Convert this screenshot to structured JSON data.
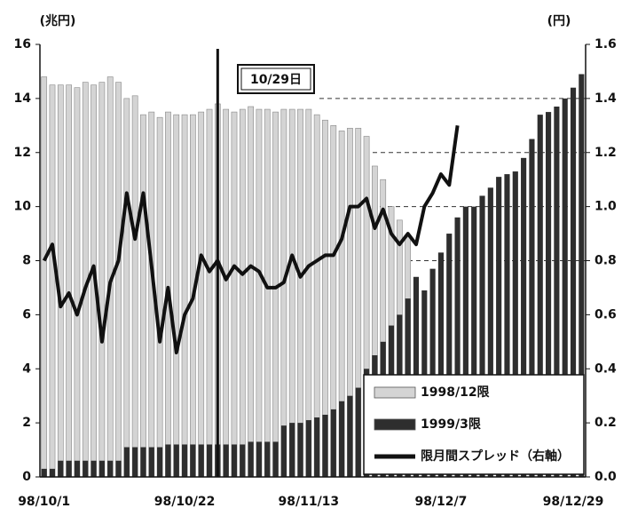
{
  "chart_data": {
    "type": "bar_line",
    "y_label": "(兆円)",
    "y2_label": "(円)",
    "annotation": "10/29日",
    "categories": [
      "98/10/1",
      null,
      null,
      null,
      null,
      null,
      null,
      null,
      null,
      null,
      null,
      null,
      null,
      null,
      null,
      null,
      null,
      "98/10/22",
      null,
      null,
      null,
      null,
      null,
      null,
      null,
      null,
      null,
      null,
      null,
      null,
      null,
      null,
      "98/11/13",
      null,
      null,
      null,
      null,
      null,
      null,
      null,
      null,
      null,
      null,
      null,
      null,
      null,
      null,
      null,
      "98/12/7",
      null,
      null,
      null,
      null,
      null,
      null,
      null,
      null,
      null,
      null,
      null,
      null,
      null,
      null,
      null,
      "98/12/29",
      null
    ],
    "series": [
      {
        "name": "1998/12限",
        "color": "#d4d4d4",
        "kind": "bar",
        "values": [
          14.8,
          14.5,
          14.5,
          14.5,
          14.4,
          14.6,
          14.5,
          14.6,
          14.8,
          14.6,
          14.0,
          14.1,
          13.4,
          13.5,
          13.3,
          13.5,
          13.4,
          13.4,
          13.4,
          13.5,
          13.6,
          13.8,
          13.6,
          13.5,
          13.6,
          13.7,
          13.6,
          13.6,
          13.5,
          13.6,
          13.6,
          13.6,
          13.6,
          13.4,
          13.2,
          13.0,
          12.8,
          12.9,
          12.9,
          12.6,
          11.5,
          11.0,
          10.0,
          9.5,
          8.9,
          null,
          null,
          null,
          null,
          null,
          null,
          null,
          null,
          null,
          null,
          null,
          null,
          null,
          null,
          null,
          null,
          null,
          null,
          null,
          null,
          null
        ]
      },
      {
        "name": "1999/3限",
        "color": "#2e2e2e",
        "kind": "bar",
        "values": [
          0.3,
          0.3,
          0.6,
          0.6,
          0.6,
          0.6,
          0.6,
          0.6,
          0.6,
          0.6,
          1.1,
          1.1,
          1.1,
          1.1,
          1.1,
          1.2,
          1.2,
          1.2,
          1.2,
          1.2,
          1.2,
          1.2,
          1.2,
          1.2,
          1.2,
          1.3,
          1.3,
          1.3,
          1.3,
          1.9,
          2.0,
          2.0,
          2.1,
          2.2,
          2.3,
          2.5,
          2.8,
          3.0,
          3.3,
          4.0,
          4.5,
          5.0,
          5.6,
          6.0,
          6.6,
          7.4,
          6.9,
          7.7,
          8.3,
          9.0,
          9.6,
          10.0,
          10.0,
          10.4,
          10.7,
          11.1,
          11.2,
          11.3,
          11.8,
          12.5,
          13.4,
          13.5,
          13.7,
          14.0,
          14.4,
          14.9
        ]
      },
      {
        "name": "限月間スプレッド（右軸）",
        "color": "#111111",
        "kind": "line",
        "axis": "y2",
        "values": [
          0.8,
          0.86,
          0.63,
          0.68,
          0.6,
          0.7,
          0.78,
          0.5,
          0.72,
          0.8,
          1.05,
          0.88,
          1.05,
          0.78,
          0.5,
          0.7,
          0.46,
          0.6,
          0.66,
          0.82,
          0.76,
          0.8,
          0.73,
          0.78,
          0.75,
          0.78,
          0.76,
          0.7,
          0.7,
          0.72,
          0.82,
          0.74,
          0.78,
          0.8,
          0.82,
          0.82,
          0.88,
          1.0,
          1.0,
          1.03,
          0.92,
          0.99,
          0.9,
          0.86,
          0.9,
          0.86,
          1.0,
          1.05,
          1.12,
          1.08,
          1.3,
          null,
          null,
          null,
          null,
          null,
          null,
          null,
          null,
          null,
          null,
          null,
          null,
          null,
          null,
          null
        ]
      }
    ],
    "ylim": [
      0,
      16
    ],
    "yticks": [
      0,
      2,
      4,
      6,
      8,
      10,
      12,
      14,
      16
    ],
    "y2lim": [
      0,
      1.6
    ],
    "y2ticks": [
      {
        "value": 0,
        "label": "0.0"
      },
      0.2,
      0.4,
      0.6,
      0.8,
      {
        "value": 1,
        "label": "1.0"
      },
      1.2,
      1.4,
      1.6
    ],
    "legend": "bottom-right"
  }
}
